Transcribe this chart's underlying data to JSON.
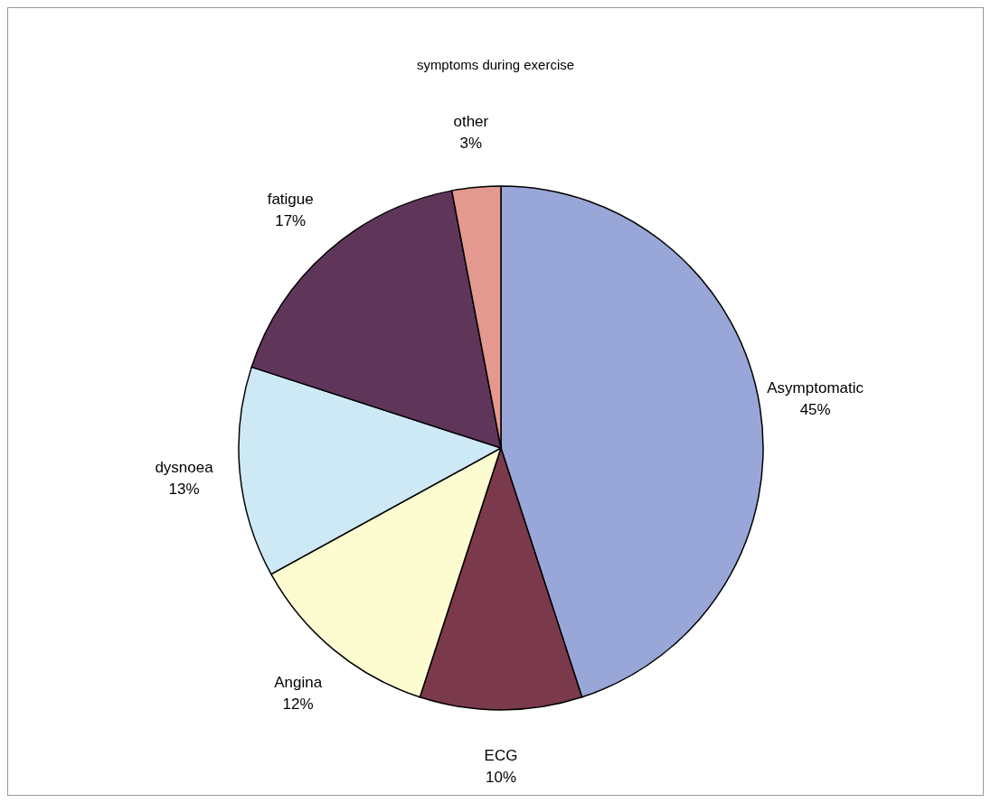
{
  "chart_data": {
    "type": "pie",
    "title": "symptoms during exercise",
    "categories": [
      "Asymptomatic",
      "ECG",
      "Angina",
      "dysnoea",
      "fatigue",
      "other"
    ],
    "values": [
      45,
      10,
      12,
      13,
      17,
      3
    ],
    "value_labels": [
      "45%",
      "10%",
      "12%",
      "13%",
      "17%",
      "3%"
    ],
    "colors": [
      "#99a6d8",
      "#7b3a4c",
      "#fdfbd0",
      "#cde9f5",
      "#5f355a",
      "#e3998f"
    ],
    "legend": false
  }
}
